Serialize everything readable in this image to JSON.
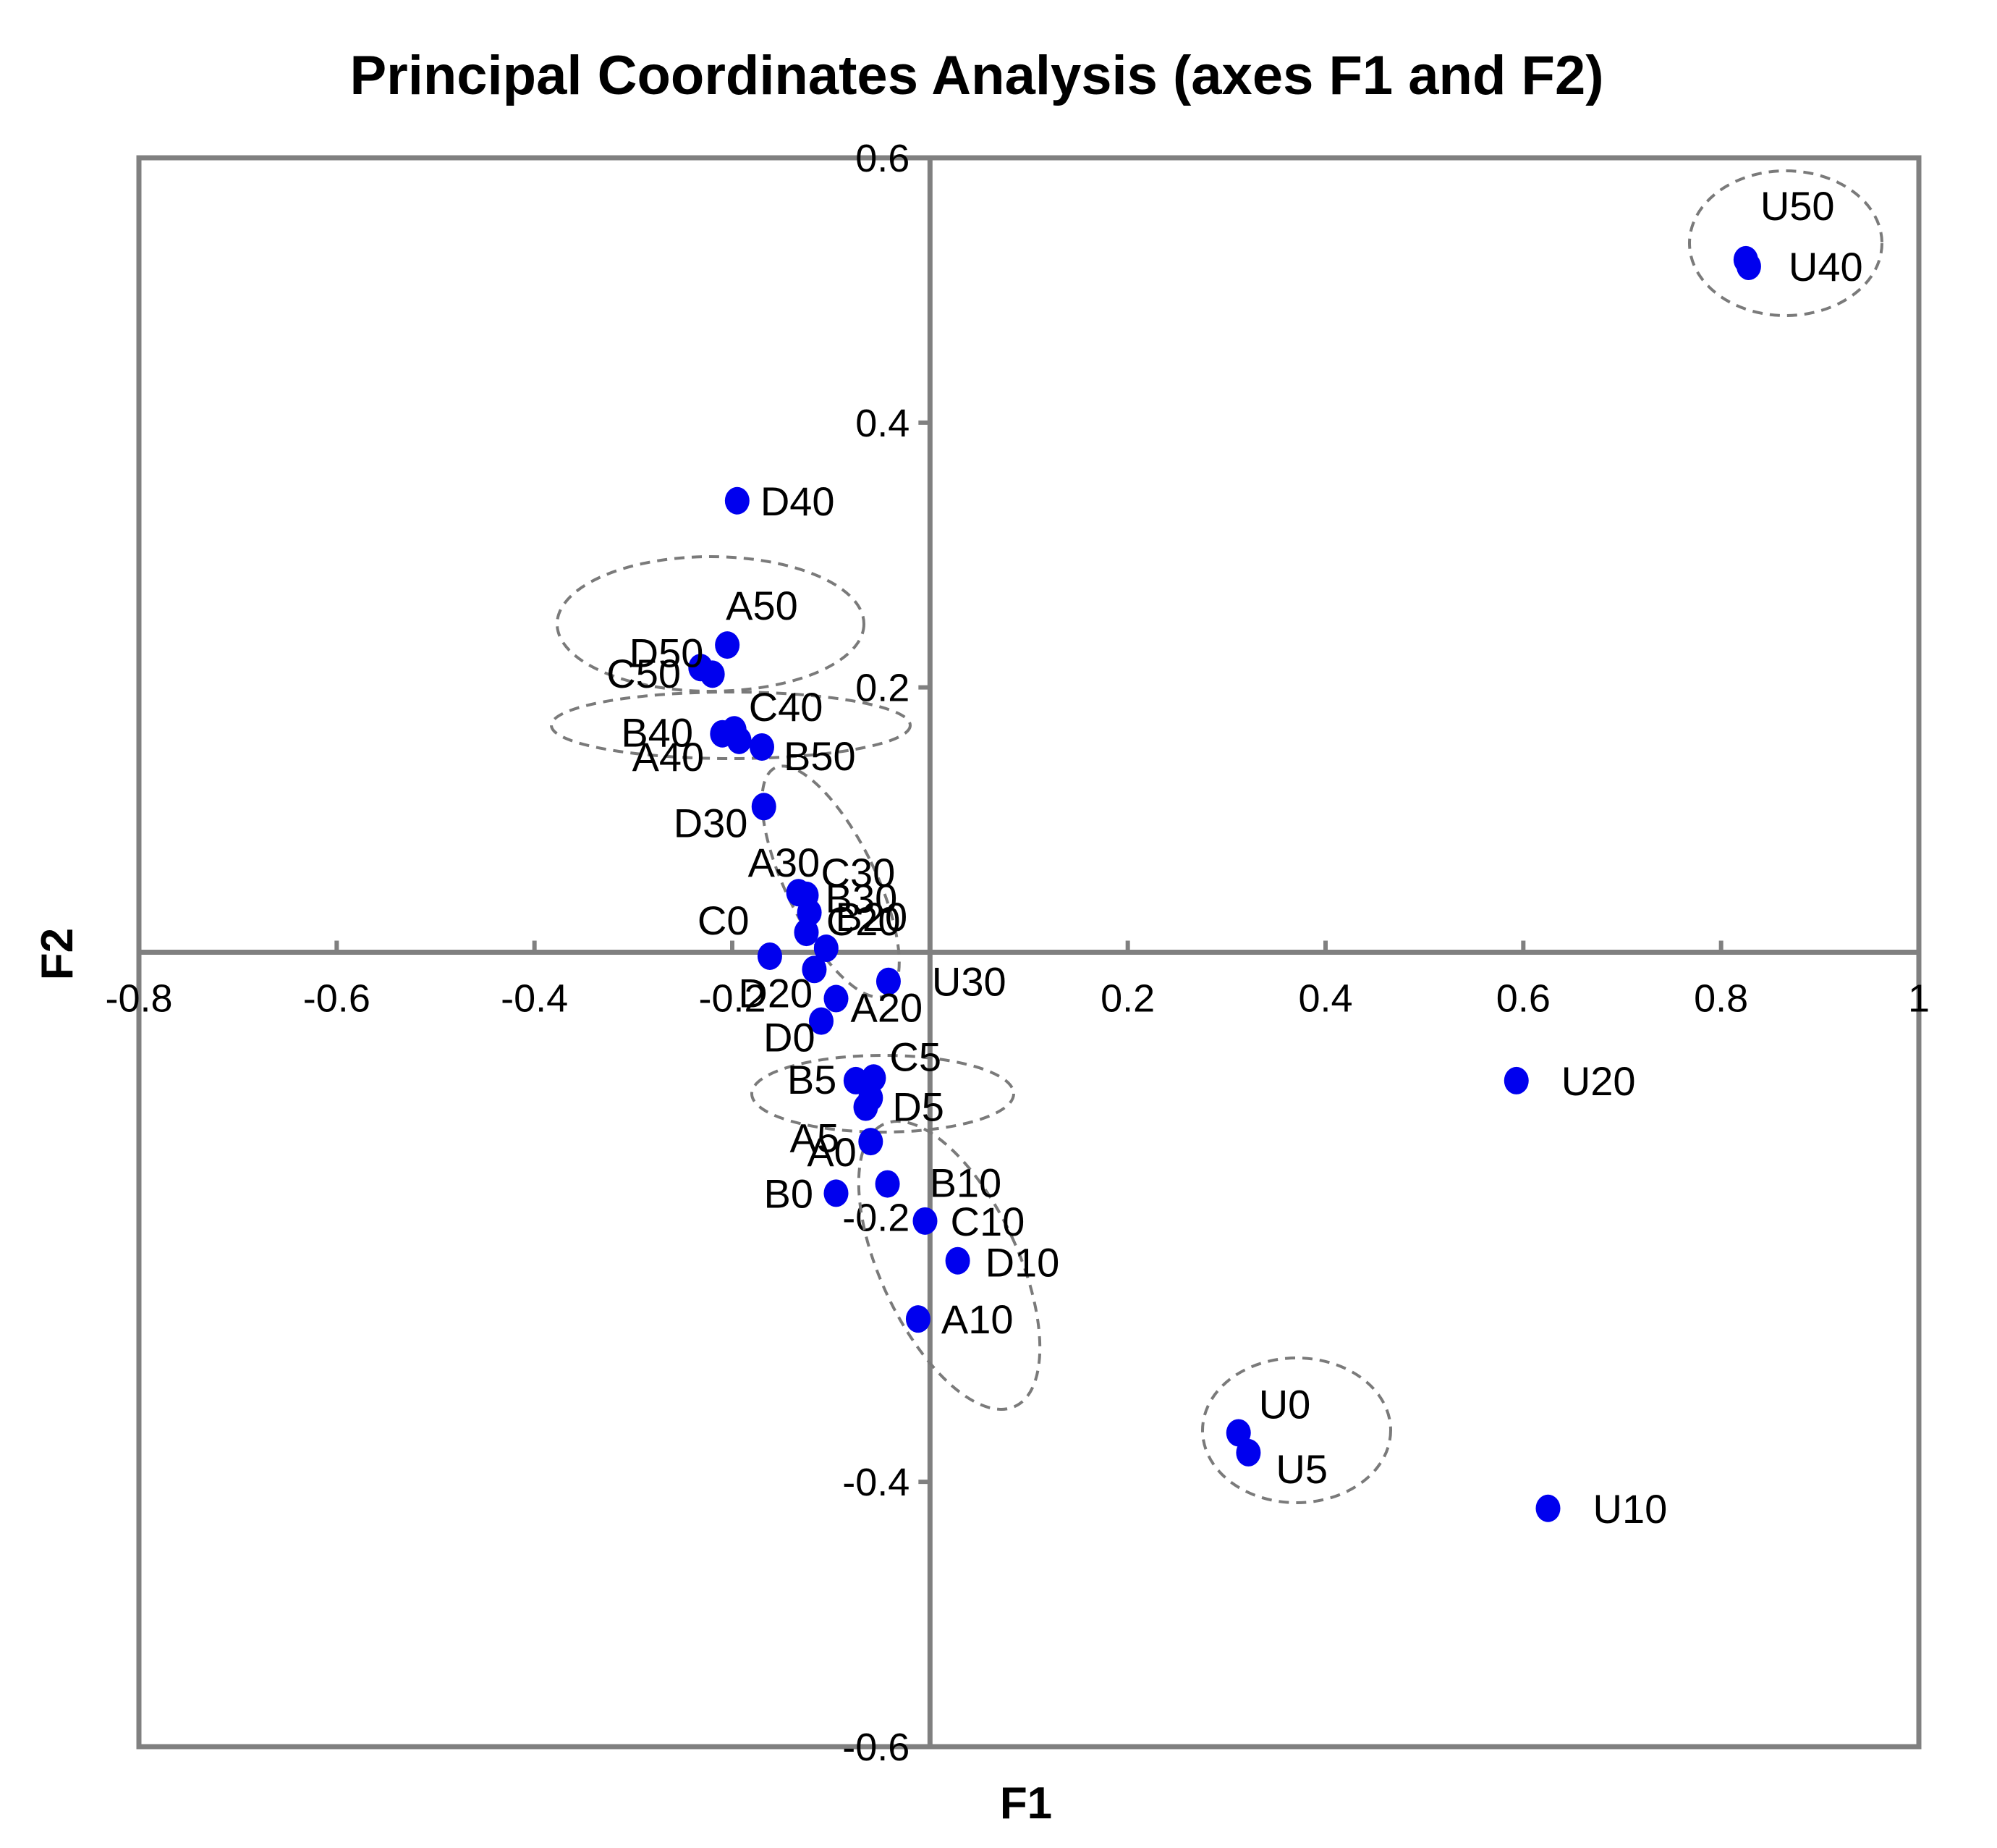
{
  "chart_data": {
    "type": "scatter",
    "title": "Principal Coordinates Analysis (axes F1 and F2)",
    "xlabel": "F1",
    "ylabel": "F2",
    "xlim": [
      -0.8,
      1
    ],
    "ylim": [
      -0.6,
      0.6
    ],
    "xticks": [
      "-0.8",
      "-0.6",
      "-0.4",
      "-0.2",
      "0.2",
      "0.4",
      "0.6",
      "0.8",
      "1"
    ],
    "yticks": [
      "0.6",
      "0.4",
      "0.2",
      "-0.2",
      "-0.4",
      "-0.6"
    ],
    "grid": false,
    "legend": "none",
    "point_color": "#0000ee",
    "points": [
      {
        "label": "U50",
        "x": 0.825,
        "y": 0.523
      },
      {
        "label": "U40",
        "x": 0.828,
        "y": 0.518
      },
      {
        "label": "D40",
        "x": -0.195,
        "y": 0.341
      },
      {
        "label": "D50",
        "x": -0.22,
        "y": 0.21
      },
      {
        "label": "A50",
        "x": -0.205,
        "y": 0.232
      },
      {
        "label": "C50",
        "x": -0.232,
        "y": 0.215
      },
      {
        "label": "B40",
        "x": -0.21,
        "y": 0.165
      },
      {
        "label": "C40",
        "x": -0.198,
        "y": 0.168
      },
      {
        "label": "B50",
        "x": -0.17,
        "y": 0.155
      },
      {
        "label": "A40",
        "x": -0.193,
        "y": 0.16
      },
      {
        "label": "D30",
        "x": -0.168,
        "y": 0.11
      },
      {
        "label": "A30",
        "x": -0.133,
        "y": 0.045
      },
      {
        "label": "C30",
        "x": -0.125,
        "y": 0.043
      },
      {
        "label": "B30",
        "x": -0.122,
        "y": 0.03
      },
      {
        "label": "B20",
        "x": -0.125,
        "y": 0.015
      },
      {
        "label": "C20",
        "x": -0.105,
        "y": 0.003
      },
      {
        "label": "C0",
        "x": -0.162,
        "y": -0.003
      },
      {
        "label": "D20",
        "x": -0.117,
        "y": -0.013
      },
      {
        "label": "U30",
        "x": -0.042,
        "y": -0.022
      },
      {
        "label": "A20",
        "x": -0.095,
        "y": -0.035
      },
      {
        "label": "D0",
        "x": -0.11,
        "y": -0.052
      },
      {
        "label": "B5",
        "x": -0.075,
        "y": -0.097
      },
      {
        "label": "C5",
        "x": -0.057,
        "y": -0.095
      },
      {
        "label": "A5",
        "x": -0.065,
        "y": -0.117
      },
      {
        "label": "D5",
        "x": -0.06,
        "y": -0.11
      },
      {
        "label": "A0",
        "x": -0.06,
        "y": -0.143
      },
      {
        "label": "B10",
        "x": -0.043,
        "y": -0.175
      },
      {
        "label": "B0",
        "x": -0.095,
        "y": -0.182
      },
      {
        "label": "C10",
        "x": -0.005,
        "y": -0.203
      },
      {
        "label": "D10",
        "x": 0.028,
        "y": -0.233
      },
      {
        "label": "A10",
        "x": -0.012,
        "y": -0.277
      },
      {
        "label": "U20",
        "x": 0.593,
        "y": -0.097
      },
      {
        "label": "U0",
        "x": 0.312,
        "y": -0.363
      },
      {
        "label": "U5",
        "x": 0.322,
        "y": -0.378
      },
      {
        "label": "U10",
        "x": 0.625,
        "y": -0.42
      }
    ]
  }
}
